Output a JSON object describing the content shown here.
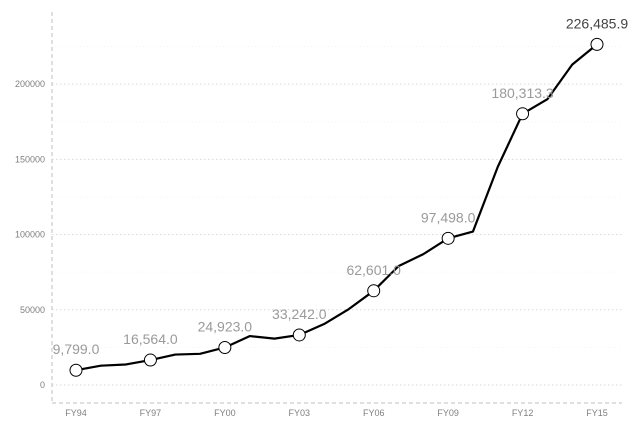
{
  "chart_data": {
    "type": "line",
    "title": "",
    "xlabel": "",
    "ylabel": "",
    "x": [
      "FY94",
      "FY95",
      "FY96",
      "FY97",
      "FY98",
      "FY99",
      "FY00",
      "FY01",
      "FY02",
      "FY03",
      "FY04",
      "FY05",
      "FY06",
      "FY07",
      "FY08",
      "FY09",
      "FY10",
      "FY11",
      "FY12",
      "FY13",
      "FY14",
      "FY15"
    ],
    "values": [
      9799.0,
      12800,
      13600,
      16564.0,
      20200,
      20700,
      24923.0,
      32500,
      30800,
      33242.0,
      40500,
      50500,
      62601.0,
      79000,
      87000,
      97498.0,
      102000,
      145000,
      180313.3,
      190000,
      213000,
      226485.9
    ],
    "labeled_points": [
      {
        "x": "FY94",
        "label": "9,799.0"
      },
      {
        "x": "FY97",
        "label": "16,564.0"
      },
      {
        "x": "FY00",
        "label": "24,923.0"
      },
      {
        "x": "FY03",
        "label": "33,242.0"
      },
      {
        "x": "FY06",
        "label": "62,601.0"
      },
      {
        "x": "FY09",
        "label": "97,498.0"
      },
      {
        "x": "FY12",
        "label": "180,313.3"
      },
      {
        "x": "FY15",
        "label": "226,485.9"
      }
    ],
    "x_ticks": [
      "FY94",
      "FY97",
      "FY00",
      "FY03",
      "FY06",
      "FY09",
      "FY12",
      "FY15"
    ],
    "y_ticks": [
      0,
      50000,
      100000,
      150000,
      200000
    ],
    "y_tick_labels": [
      "0",
      "50000",
      "100000",
      "150000",
      "200000"
    ],
    "ylim": [
      -12000,
      248000
    ],
    "grid": true,
    "legend": "none",
    "colors": {
      "line": "#000000",
      "marker_fill": "#ffffff",
      "grid": "#d9d9d9",
      "axis": "#bfbfbf",
      "tick_text": "#7f7f7f",
      "label_text": "#9a9a9a",
      "last_label_text": "#444444"
    }
  }
}
